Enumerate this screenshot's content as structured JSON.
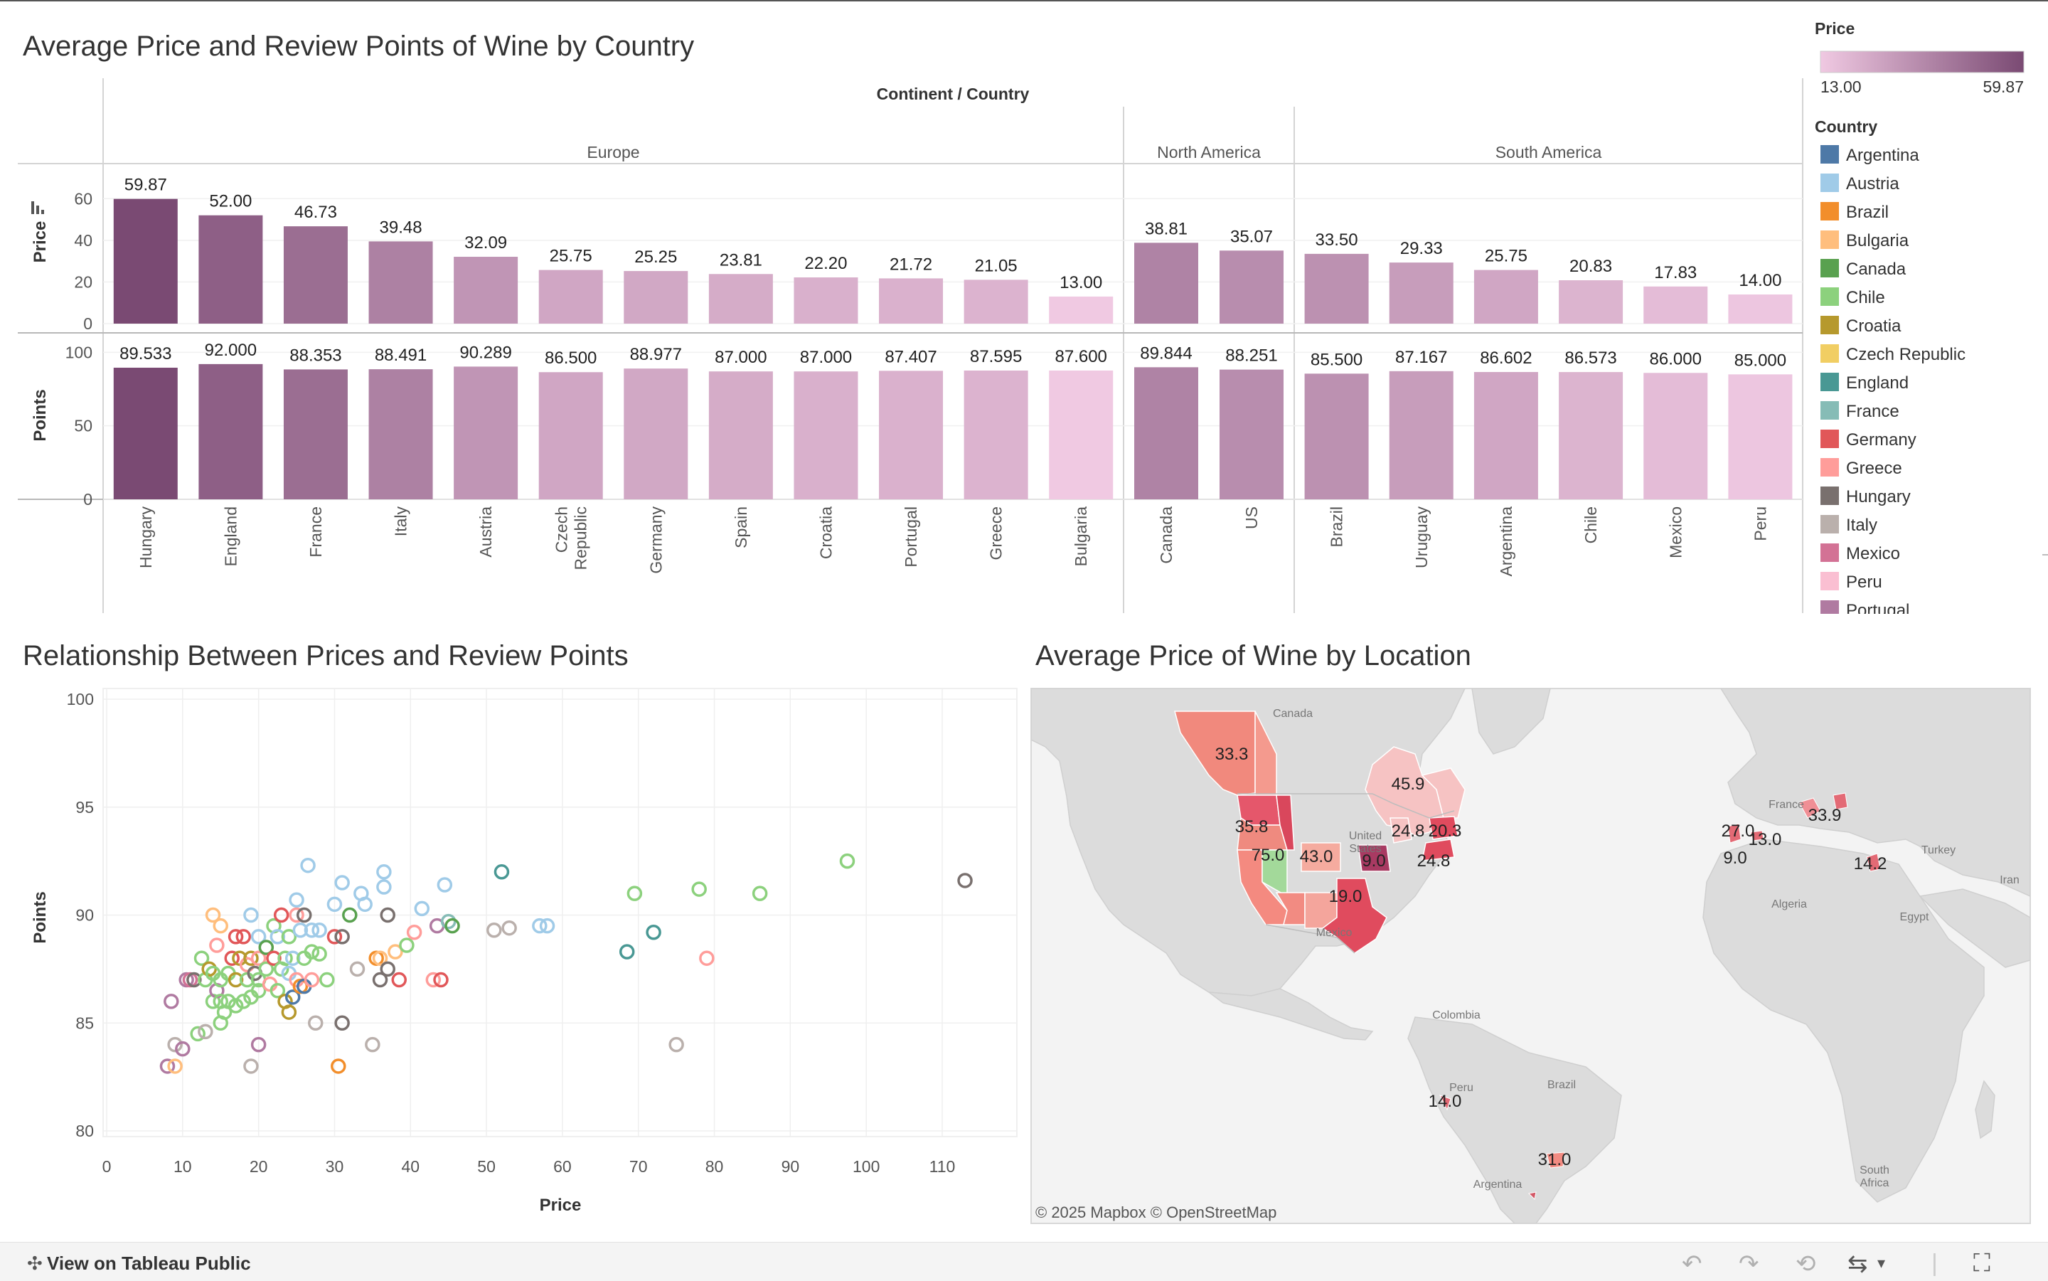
{
  "dashboard": {
    "titles": {
      "bar": "Average Price and Review Points of Wine by Country",
      "scatter": "Relationship Between Prices and Review Points",
      "map": "Average Price of Wine by Location"
    },
    "column_header": "Continent / Country",
    "price_axis_title": "Price",
    "points_axis_title": "Points",
    "scatter_x_title": "Price",
    "scatter_y_title": "Points",
    "map_attribution": "© 2025 Mapbox  © OpenStreetMap",
    "footer_link": "View on Tableau Public"
  },
  "legend": {
    "price_title": "Price",
    "price_min": "13.00",
    "price_max": "59.87",
    "country_title": "Country",
    "countries": [
      {
        "name": "Argentina",
        "color": "#4e79a7"
      },
      {
        "name": "Austria",
        "color": "#a0cbe8"
      },
      {
        "name": "Brazil",
        "color": "#f28e2b"
      },
      {
        "name": "Bulgaria",
        "color": "#ffbe7d"
      },
      {
        "name": "Canada",
        "color": "#59a14f"
      },
      {
        "name": "Chile",
        "color": "#8cd17d"
      },
      {
        "name": "Croatia",
        "color": "#b6992d"
      },
      {
        "name": "Czech Republic",
        "color": "#f1ce63"
      },
      {
        "name": "England",
        "color": "#499894"
      },
      {
        "name": "France",
        "color": "#86bcb6"
      },
      {
        "name": "Germany",
        "color": "#e15759"
      },
      {
        "name": "Greece",
        "color": "#ff9d9a"
      },
      {
        "name": "Hungary",
        "color": "#79706e"
      },
      {
        "name": "Italy",
        "color": "#bab0ac"
      },
      {
        "name": "Mexico",
        "color": "#d37295"
      },
      {
        "name": "Peru",
        "color": "#fabfd2"
      },
      {
        "name": "Portugal",
        "color": "#b07aa1"
      }
    ]
  },
  "chart_data": [
    {
      "type": "bar",
      "title": "Average Price and Review Points of Wine by Country",
      "groups": [
        {
          "name": "Europe",
          "categories": [
            "Hungary",
            "England",
            "France",
            "Italy",
            "Austria",
            "Czech Republic",
            "Germany",
            "Spain",
            "Croatia",
            "Portugal",
            "Greece",
            "Bulgaria"
          ]
        },
        {
          "name": "North America",
          "categories": [
            "Canada",
            "US"
          ]
        },
        {
          "name": "South America",
          "categories": [
            "Brazil",
            "Uruguay",
            "Argentina",
            "Chile",
            "Mexico",
            "Peru"
          ]
        }
      ],
      "categories": [
        "Hungary",
        "England",
        "France",
        "Italy",
        "Austria",
        "Czech Republic",
        "Germany",
        "Spain",
        "Croatia",
        "Portugal",
        "Greece",
        "Bulgaria",
        "Canada",
        "US",
        "Brazil",
        "Uruguay",
        "Argentina",
        "Chile",
        "Mexico",
        "Peru"
      ],
      "category_labels": [
        "Hungary",
        "England",
        "France",
        "Italy",
        "Austria",
        "Czech\nRepublic",
        "Germany",
        "Spain",
        "Croatia",
        "Portugal",
        "Greece",
        "Bulgaria",
        "Canada",
        "US",
        "Brazil",
        "Uruguay",
        "Argentina",
        "Chile",
        "Mexico",
        "Peru"
      ],
      "series": [
        {
          "name": "Price",
          "values": [
            59.87,
            52.0,
            46.73,
            39.48,
            32.09,
            25.75,
            25.25,
            23.81,
            22.2,
            21.72,
            21.05,
            13.0,
            38.81,
            35.07,
            33.5,
            29.33,
            25.75,
            20.83,
            17.83,
            14.0
          ],
          "labels": [
            "59.87",
            "52.00",
            "46.73",
            "39.48",
            "32.09",
            "25.75",
            "25.25",
            "23.81",
            "22.20",
            "21.72",
            "21.05",
            "13.00",
            "38.81",
            "35.07",
            "33.50",
            "29.33",
            "25.75",
            "20.83",
            "17.83",
            "14.00"
          ]
        },
        {
          "name": "Points",
          "values": [
            89.533,
            92.0,
            88.353,
            88.491,
            90.289,
            86.5,
            88.977,
            87.0,
            87.0,
            87.407,
            87.595,
            87.6,
            89.844,
            88.251,
            85.5,
            87.167,
            86.602,
            86.573,
            86.0,
            85.0
          ],
          "labels": [
            "89.533",
            "92.000",
            "88.353",
            "88.491",
            "90.289",
            "86.500",
            "88.977",
            "87.000",
            "87.000",
            "87.407",
            "87.595",
            "87.600",
            "89.844",
            "88.251",
            "85.500",
            "87.167",
            "86.602",
            "86.573",
            "86.000",
            "85.000"
          ]
        }
      ],
      "price_ticks": [
        "0",
        "20",
        "40",
        "60"
      ],
      "price_ylim": [
        0,
        70
      ],
      "points_ticks": [
        "0",
        "50",
        "100"
      ],
      "points_ylim": [
        0,
        105
      ],
      "color_encoding": "Price",
      "color_range": [
        "#f0c9e2",
        "#7a4a73"
      ]
    },
    {
      "type": "scatter",
      "title": "Relationship Between Prices and Review Points",
      "xlabel": "Price",
      "ylabel": "Points",
      "xlim": [
        0,
        120
      ],
      "ylim": [
        80,
        100
      ],
      "x_ticks": [
        "0",
        "10",
        "20",
        "30",
        "40",
        "50",
        "60",
        "70",
        "80",
        "90",
        "100",
        "110"
      ],
      "y_ticks": [
        "80",
        "85",
        "90",
        "95",
        "100"
      ],
      "grid": true,
      "marker": "hollow-circle",
      "points": [
        {
          "x": 8,
          "y": 83,
          "c": "Portugal"
        },
        {
          "x": 9,
          "y": 83,
          "c": "Bulgaria"
        },
        {
          "x": 9,
          "y": 84,
          "c": "Italy"
        },
        {
          "x": 10,
          "y": 83.8,
          "c": "Portugal"
        },
        {
          "x": 8.5,
          "y": 86,
          "c": "Portugal"
        },
        {
          "x": 10.5,
          "y": 87,
          "c": "Portugal"
        },
        {
          "x": 11,
          "y": 87,
          "c": "Mexico"
        },
        {
          "x": 11.5,
          "y": 87,
          "c": "Hungary"
        },
        {
          "x": 12,
          "y": 84.5,
          "c": "Chile"
        },
        {
          "x": 13,
          "y": 84.6,
          "c": "Italy"
        },
        {
          "x": 12.5,
          "y": 88,
          "c": "Chile"
        },
        {
          "x": 13,
          "y": 87,
          "c": "Chile"
        },
        {
          "x": 13.5,
          "y": 87.5,
          "c": "Croatia"
        },
        {
          "x": 14,
          "y": 86,
          "c": "Chile"
        },
        {
          "x": 14,
          "y": 87.3,
          "c": "Chile"
        },
        {
          "x": 14.5,
          "y": 86.5,
          "c": "Portugal"
        },
        {
          "x": 14.5,
          "y": 88.6,
          "c": "Greece"
        },
        {
          "x": 15,
          "y": 86,
          "c": "Chile"
        },
        {
          "x": 15,
          "y": 87,
          "c": "Chile"
        },
        {
          "x": 15.5,
          "y": 85.5,
          "c": "Chile"
        },
        {
          "x": 14,
          "y": 90,
          "c": "Bulgaria"
        },
        {
          "x": 15,
          "y": 89.5,
          "c": "Bulgaria"
        },
        {
          "x": 15,
          "y": 85,
          "c": "Chile"
        },
        {
          "x": 16,
          "y": 86,
          "c": "Chile"
        },
        {
          "x": 16,
          "y": 87.3,
          "c": "Chile"
        },
        {
          "x": 16.5,
          "y": 88,
          "c": "Germany"
        },
        {
          "x": 17,
          "y": 89,
          "c": "Germany"
        },
        {
          "x": 17,
          "y": 87,
          "c": "Croatia"
        },
        {
          "x": 17,
          "y": 85.8,
          "c": "Chile"
        },
        {
          "x": 17.5,
          "y": 88,
          "c": "Croatia"
        },
        {
          "x": 18,
          "y": 89,
          "c": "Germany"
        },
        {
          "x": 18,
          "y": 86,
          "c": "Chile"
        },
        {
          "x": 18.5,
          "y": 87,
          "c": "Chile"
        },
        {
          "x": 18.5,
          "y": 87.7,
          "c": "Greece"
        },
        {
          "x": 19,
          "y": 88,
          "c": "Croatia"
        },
        {
          "x": 19,
          "y": 90,
          "c": "Austria"
        },
        {
          "x": 19,
          "y": 86.2,
          "c": "Chile"
        },
        {
          "x": 19.5,
          "y": 87.3,
          "c": "Hungary"
        },
        {
          "x": 20,
          "y": 87,
          "c": "Chile"
        },
        {
          "x": 20,
          "y": 89,
          "c": "Austria"
        },
        {
          "x": 20,
          "y": 88,
          "c": "Greece"
        },
        {
          "x": 20,
          "y": 86.5,
          "c": "Chile"
        },
        {
          "x": 20,
          "y": 84,
          "c": "Portugal"
        },
        {
          "x": 19,
          "y": 83,
          "c": "Italy"
        },
        {
          "x": 21,
          "y": 87.5,
          "c": "Chile"
        },
        {
          "x": 21,
          "y": 88.5,
          "c": "Canada"
        },
        {
          "x": 21.5,
          "y": 86.8,
          "c": "Greece"
        },
        {
          "x": 22,
          "y": 88,
          "c": "Germany"
        },
        {
          "x": 22,
          "y": 89.5,
          "c": "Chile"
        },
        {
          "x": 22.5,
          "y": 86.5,
          "c": "Chile"
        },
        {
          "x": 22.5,
          "y": 89,
          "c": "Austria"
        },
        {
          "x": 23,
          "y": 87.5,
          "c": "Chile"
        },
        {
          "x": 23,
          "y": 90,
          "c": "Germany"
        },
        {
          "x": 23.5,
          "y": 86,
          "c": "Croatia"
        },
        {
          "x": 23.5,
          "y": 88,
          "c": "Chile"
        },
        {
          "x": 24,
          "y": 87.3,
          "c": "Austria"
        },
        {
          "x": 24,
          "y": 85.5,
          "c": "Croatia"
        },
        {
          "x": 24,
          "y": 89,
          "c": "Chile"
        },
        {
          "x": 24.5,
          "y": 86.2,
          "c": "Argentina"
        },
        {
          "x": 24.5,
          "y": 88,
          "c": "Austria"
        },
        {
          "x": 25,
          "y": 90,
          "c": "Greece"
        },
        {
          "x": 25,
          "y": 90.7,
          "c": "Austria"
        },
        {
          "x": 25,
          "y": 87,
          "c": "Greece"
        },
        {
          "x": 25.5,
          "y": 86.7,
          "c": "Brazil"
        },
        {
          "x": 25.5,
          "y": 89.3,
          "c": "Austria"
        },
        {
          "x": 26,
          "y": 88,
          "c": "Chile"
        },
        {
          "x": 26,
          "y": 90,
          "c": "Hungary"
        },
        {
          "x": 26,
          "y": 86.7,
          "c": "Argentina"
        },
        {
          "x": 26.5,
          "y": 92.3,
          "c": "Austria"
        },
        {
          "x": 27,
          "y": 89.3,
          "c": "Austria"
        },
        {
          "x": 27,
          "y": 88.3,
          "c": "Chile"
        },
        {
          "x": 27,
          "y": 87,
          "c": "Greece"
        },
        {
          "x": 27.5,
          "y": 85,
          "c": "Italy"
        },
        {
          "x": 28,
          "y": 89.3,
          "c": "Austria"
        },
        {
          "x": 28,
          "y": 88.2,
          "c": "Chile"
        },
        {
          "x": 29,
          "y": 87,
          "c": "Chile"
        },
        {
          "x": 30,
          "y": 89,
          "c": "Germany"
        },
        {
          "x": 30,
          "y": 90.5,
          "c": "Austria"
        },
        {
          "x": 30.5,
          "y": 83,
          "c": "Brazil"
        },
        {
          "x": 31,
          "y": 85,
          "c": "Hungary"
        },
        {
          "x": 31,
          "y": 89,
          "c": "Hungary"
        },
        {
          "x": 31,
          "y": 91.5,
          "c": "Austria"
        },
        {
          "x": 32,
          "y": 90,
          "c": "Canada"
        },
        {
          "x": 33,
          "y": 87.5,
          "c": "Italy"
        },
        {
          "x": 33.5,
          "y": 91,
          "c": "Austria"
        },
        {
          "x": 34,
          "y": 90.5,
          "c": "Austria"
        },
        {
          "x": 35,
          "y": 84,
          "c": "Italy"
        },
        {
          "x": 35.5,
          "y": 88,
          "c": "Brazil"
        },
        {
          "x": 36,
          "y": 87,
          "c": "Hungary"
        },
        {
          "x": 36,
          "y": 88,
          "c": "Bulgaria"
        },
        {
          "x": 36.5,
          "y": 92,
          "c": "Austria"
        },
        {
          "x": 36.5,
          "y": 91.3,
          "c": "Austria"
        },
        {
          "x": 37,
          "y": 87.5,
          "c": "Hungary"
        },
        {
          "x": 37,
          "y": 90,
          "c": "Hungary"
        },
        {
          "x": 38,
          "y": 88.3,
          "c": "Bulgaria"
        },
        {
          "x": 38.5,
          "y": 87,
          "c": "Germany"
        },
        {
          "x": 39.5,
          "y": 88.6,
          "c": "Chile"
        },
        {
          "x": 40.5,
          "y": 89.2,
          "c": "Greece"
        },
        {
          "x": 41.5,
          "y": 90.3,
          "c": "Austria"
        },
        {
          "x": 43,
          "y": 87,
          "c": "Greece"
        },
        {
          "x": 43.5,
          "y": 89.5,
          "c": "Portugal"
        },
        {
          "x": 44,
          "y": 87,
          "c": "Germany"
        },
        {
          "x": 44.5,
          "y": 91.4,
          "c": "Austria"
        },
        {
          "x": 45,
          "y": 89.7,
          "c": "France"
        },
        {
          "x": 45.5,
          "y": 89.5,
          "c": "Canada"
        },
        {
          "x": 51,
          "y": 89.3,
          "c": "Italy"
        },
        {
          "x": 52,
          "y": 92,
          "c": "England"
        },
        {
          "x": 53,
          "y": 89.4,
          "c": "Italy"
        },
        {
          "x": 57,
          "y": 89.5,
          "c": "Austria"
        },
        {
          "x": 58,
          "y": 89.5,
          "c": "Austria"
        },
        {
          "x": 68.5,
          "y": 88.3,
          "c": "England"
        },
        {
          "x": 69.5,
          "y": 91,
          "c": "Chile"
        },
        {
          "x": 72,
          "y": 89.2,
          "c": "England"
        },
        {
          "x": 75,
          "y": 84,
          "c": "Italy"
        },
        {
          "x": 78,
          "y": 91.2,
          "c": "Chile"
        },
        {
          "x": 79,
          "y": 88,
          "c": "Greece"
        },
        {
          "x": 86,
          "y": 91,
          "c": "Chile"
        },
        {
          "x": 97.5,
          "y": 92.5,
          "c": "Chile"
        },
        {
          "x": 113,
          "y": 91.6,
          "c": "Hungary"
        }
      ]
    },
    {
      "type": "map",
      "title": "Average Price of Wine by Location",
      "region_labels": [
        {
          "name": "Canada",
          "label": "Canada"
        },
        {
          "name": "United States",
          "label": "United\nStates"
        },
        {
          "name": "Mexico",
          "label": "Mexico"
        },
        {
          "name": "Colombia",
          "label": "Colombia"
        },
        {
          "name": "Peru",
          "label": "Peru"
        },
        {
          "name": "Brazil",
          "label": "Brazil"
        },
        {
          "name": "Argentina",
          "label": "Argentina"
        },
        {
          "name": "France",
          "label": "France"
        },
        {
          "name": "Algeria",
          "label": "Algeria"
        },
        {
          "name": "Egypt",
          "label": "Egypt"
        },
        {
          "name": "Turkey",
          "label": "Turkey"
        },
        {
          "name": "Iran",
          "label": "Iran"
        },
        {
          "name": "South Africa",
          "label": "South\nAfrica"
        }
      ],
      "value_labels": [
        {
          "region": "British Columbia",
          "value": "33.3"
        },
        {
          "region": "Ontario",
          "value": "45.9"
        },
        {
          "region": "Oregon",
          "value": "35.8"
        },
        {
          "region": "California",
          "value": "75.0"
        },
        {
          "region": "Colorado",
          "value": "43.0"
        },
        {
          "region": "Missouri",
          "value": "9.0"
        },
        {
          "region": "Michigan",
          "value": "24.8"
        },
        {
          "region": "New York",
          "value": "20.3"
        },
        {
          "region": "Virginia",
          "value": "24.8"
        },
        {
          "region": "Texas",
          "value": "19.0"
        },
        {
          "region": "Peru",
          "value": "14.0"
        },
        {
          "region": "Uruguay",
          "value": "31.0"
        },
        {
          "region": "Portugal",
          "value": "27.0"
        },
        {
          "region": "Portugal (south)",
          "value": "9.0"
        },
        {
          "region": "Spain",
          "value": "13.0"
        },
        {
          "region": "Hungary",
          "value": "33.9"
        },
        {
          "region": "Greece",
          "value": "14.2"
        }
      ]
    }
  ]
}
